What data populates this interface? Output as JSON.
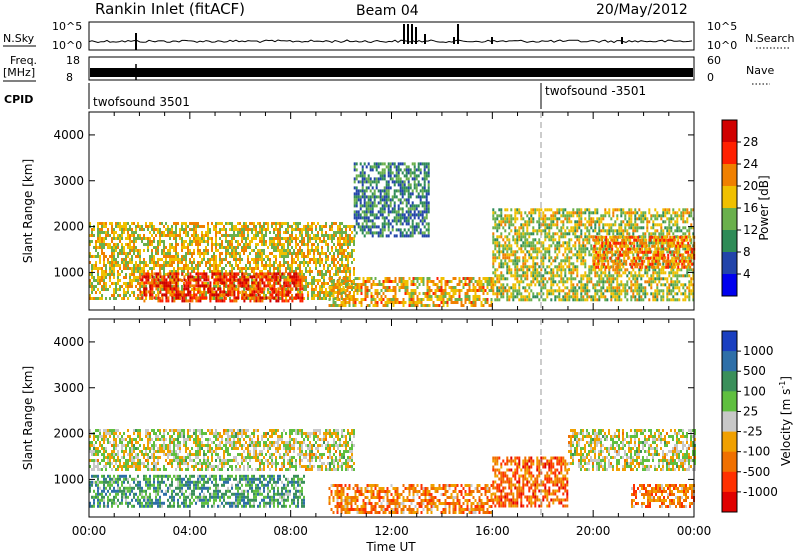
{
  "header": {
    "station": "Rankin Inlet (fitACF)",
    "beam": "Beam 04",
    "date": "20/May/2012"
  },
  "top_panels": {
    "nsky_label": "N.Sky",
    "nsky_ticks": [
      "10^5",
      "10^0"
    ],
    "nsearch_label": "N.Search",
    "nsearch_ticks": [
      "10^5",
      "10^0"
    ],
    "freq_label": "Freq.",
    "freq_unit": "[MHz]",
    "freq_ticks": [
      "18",
      "8"
    ],
    "nave_label": "Nave",
    "nave_ticks": [
      "60",
      "0"
    ],
    "cpid_label": "CPID",
    "cpid_modes": [
      {
        "name": "twofsound 3501",
        "start_hour": 0
      },
      {
        "name": "twofsound -3501",
        "start_hour": 18
      }
    ]
  },
  "chart_data": [
    {
      "type": "heatmap",
      "name": "power-panel",
      "ylabel": "Slant Range [km]",
      "ylim": [
        180,
        4500
      ],
      "yticks": [
        "1000",
        "2000",
        "3000",
        "4000"
      ],
      "xlim": [
        0,
        24
      ],
      "colorbar_label": "Power [dB]",
      "colorbar_ticks": [
        "4",
        "8",
        "12",
        "16",
        "20",
        "24",
        "28"
      ],
      "colors": [
        "#0000ee",
        "#2244aa",
        "#2e8b57",
        "#6ab04c",
        "#f0c000",
        "#f08000",
        "#ff2000",
        "#d00000"
      ],
      "echo_bands": [
        {
          "x0": 0.0,
          "x1": 10.5,
          "r0": 400,
          "r1": 2100,
          "level": 0.55
        },
        {
          "x0": 2.0,
          "x1": 8.5,
          "r0": 400,
          "r1": 1000,
          "level": 0.85
        },
        {
          "x0": 9.5,
          "x1": 16.0,
          "r0": 300,
          "r1": 900,
          "level": 0.6
        },
        {
          "x0": 10.5,
          "x1": 13.5,
          "r0": 1800,
          "r1": 3400,
          "level": 0.3
        },
        {
          "x0": 16.0,
          "x1": 24.0,
          "r0": 400,
          "r1": 2400,
          "level": 0.5
        },
        {
          "x0": 20.0,
          "x1": 24.0,
          "r0": 1100,
          "r1": 1800,
          "level": 0.7
        }
      ]
    },
    {
      "type": "heatmap",
      "name": "velocity-panel",
      "ylabel": "Slant Range [km]",
      "ylim": [
        180,
        4500
      ],
      "yticks": [
        "1000",
        "2000",
        "3000",
        "4000"
      ],
      "xlim": [
        0,
        24
      ],
      "colorbar_label": "Velocity [m s",
      "colorbar_label_sup": "-1",
      "colorbar_label_end": "]",
      "colorbar_ticks": [
        "1000",
        "500",
        "100",
        "25",
        "-25",
        "-100",
        "-500",
        "-1000"
      ],
      "colors": [
        "#1a3fc0",
        "#2e6fa8",
        "#3a8f5a",
        "#5fbf3f",
        "#c8c8c8",
        "#f0a000",
        "#f07000",
        "#ff3000",
        "#e00000"
      ],
      "echo_bands": [
        {
          "x0": 0.0,
          "x1": 10.5,
          "r0": 1200,
          "r1": 2100,
          "level": 0.5
        },
        {
          "x0": 0.0,
          "x1": 8.5,
          "r0": 400,
          "r1": 1100,
          "level": 0.3
        },
        {
          "x0": 9.5,
          "x1": 16.0,
          "r0": 300,
          "r1": 900,
          "level": 0.7
        },
        {
          "x0": 16.0,
          "x1": 19.0,
          "r0": 400,
          "r1": 1500,
          "level": 0.75
        },
        {
          "x0": 19.0,
          "x1": 24.0,
          "r0": 1200,
          "r1": 2100,
          "level": 0.5
        },
        {
          "x0": 21.5,
          "x1": 24.0,
          "r0": 400,
          "r1": 900,
          "level": 0.7
        }
      ]
    }
  ],
  "xaxis": {
    "label": "Time UT",
    "ticks": [
      "00:00",
      "04:00",
      "08:00",
      "12:00",
      "16:00",
      "20:00",
      "00:00"
    ]
  }
}
